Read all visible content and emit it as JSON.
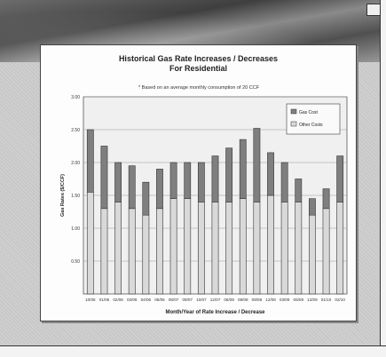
{
  "chart_data": {
    "type": "bar",
    "title": "Historical Gas Rate Increases / Decreases",
    "subtitle": "For Residential",
    "note": "* Based on an average monthly consumption of 20 CCF",
    "xlabel": "Month/Year of Rate Increase / Decrease",
    "ylabel": "Gas Rates ($/CCF)",
    "ylim": [
      0,
      3.0
    ],
    "yticks": [
      "0.50",
      "1.00",
      "1.50",
      "2.00",
      "2.50",
      "3.00"
    ],
    "categories": [
      "10/05",
      "01/06",
      "02/06",
      "03/06",
      "04/06",
      "05/06",
      "06/07",
      "09/07",
      "10/07",
      "12/07",
      "06/08",
      "08/08",
      "09/08",
      "12/08",
      "03/09",
      "06/09",
      "12/09",
      "01/10",
      "02/10"
    ],
    "stacked": true,
    "legend_position": "top-right",
    "grid": true,
    "series": [
      {
        "name": "Other Costs",
        "color": "#d9d9d9",
        "values": [
          1.55,
          1.3,
          1.4,
          1.3,
          1.2,
          1.3,
          1.45,
          1.45,
          1.4,
          1.4,
          1.4,
          1.45,
          1.4,
          1.5,
          1.4,
          1.4,
          1.2,
          1.3,
          1.4
        ]
      },
      {
        "name": "Gas Cost",
        "color": "#7f7f7f",
        "values": [
          0.95,
          0.95,
          0.6,
          0.65,
          0.5,
          0.6,
          0.55,
          0.55,
          0.6,
          0.7,
          0.82,
          0.9,
          1.12,
          0.65,
          0.6,
          0.35,
          0.25,
          0.3,
          0.7
        ]
      }
    ]
  }
}
